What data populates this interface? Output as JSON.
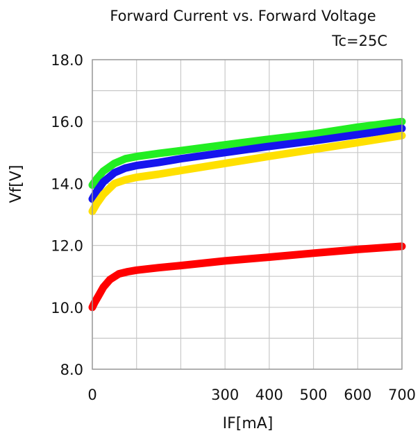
{
  "chart_data": {
    "type": "line",
    "title": "Forward Current vs. Forward Voltage",
    "condition": "Tc=25C",
    "xlabel": "IF[mA]",
    "ylabel": "Vf[V]",
    "xlim": [
      0,
      700
    ],
    "ylim": [
      8.0,
      18.0
    ],
    "x_ticks": [
      0,
      100,
      200,
      300,
      400,
      500,
      600,
      700
    ],
    "x_tick_labels": [
      "0",
      "",
      "",
      "300",
      "400",
      "500",
      "600",
      "700"
    ],
    "y_ticks": [
      8.0,
      9.0,
      10.0,
      11.0,
      12.0,
      13.0,
      14.0,
      15.0,
      16.0,
      17.0,
      18.0
    ],
    "y_tick_labels": [
      "8.0",
      "",
      "10.0",
      "",
      "12.0",
      "",
      "14.0",
      "",
      "16.0",
      "",
      "18.0"
    ],
    "grid": true,
    "legend": "none",
    "series": [
      {
        "color": "#22ee22",
        "x": [
          0,
          10,
          25,
          50,
          75,
          100,
          150,
          200,
          300,
          400,
          500,
          600,
          700
        ],
        "y": [
          13.95,
          14.15,
          14.4,
          14.65,
          14.8,
          14.87,
          14.97,
          15.06,
          15.25,
          15.43,
          15.6,
          15.82,
          16.0
        ]
      },
      {
        "color": "#1515ee",
        "x": [
          0,
          10,
          25,
          50,
          75,
          100,
          150,
          200,
          300,
          400,
          500,
          600,
          700
        ],
        "y": [
          13.5,
          13.75,
          14.05,
          14.35,
          14.5,
          14.58,
          14.68,
          14.8,
          15.0,
          15.2,
          15.38,
          15.58,
          15.78
        ]
      },
      {
        "color": "#ffe000",
        "x": [
          0,
          10,
          25,
          50,
          75,
          100,
          150,
          200,
          300,
          400,
          500,
          600,
          700
        ],
        "y": [
          13.1,
          13.35,
          13.65,
          14.0,
          14.12,
          14.2,
          14.3,
          14.42,
          14.65,
          14.88,
          15.1,
          15.32,
          15.55
        ]
      },
      {
        "color": "#ff0000",
        "x": [
          0,
          5,
          15,
          25,
          40,
          60,
          80,
          100,
          150,
          200,
          300,
          400,
          500,
          600,
          700
        ],
        "y": [
          10.0,
          10.15,
          10.4,
          10.65,
          10.9,
          11.08,
          11.15,
          11.2,
          11.28,
          11.35,
          11.5,
          11.62,
          11.75,
          11.87,
          11.97
        ]
      }
    ]
  }
}
